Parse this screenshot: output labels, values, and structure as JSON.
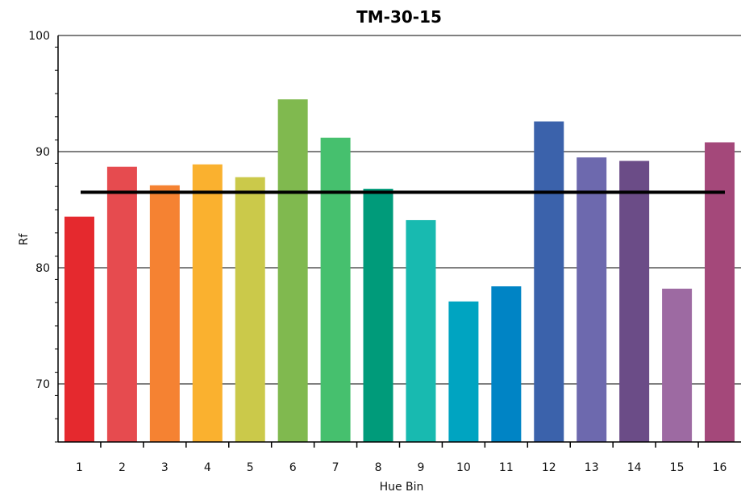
{
  "chart_data": {
    "type": "bar",
    "title": "TM-30-15",
    "xlabel": "Hue Bin",
    "ylabel": "Rf",
    "ylim": [
      65,
      100
    ],
    "yticks": [
      "70",
      "80",
      "90",
      "100"
    ],
    "categories": [
      "1",
      "2",
      "3",
      "4",
      "5",
      "6",
      "7",
      "8",
      "9",
      "10",
      "11",
      "12",
      "13",
      "14",
      "15",
      "16"
    ],
    "values": [
      84.4,
      88.7,
      87.1,
      88.9,
      87.8,
      94.5,
      91.2,
      86.8,
      84.1,
      77.1,
      78.4,
      92.6,
      89.5,
      89.2,
      78.2,
      90.8
    ],
    "colors": [
      "#e5292e",
      "#e64b4f",
      "#f58232",
      "#fab12f",
      "#cbc94a",
      "#80b94f",
      "#46c06e",
      "#009b7a",
      "#18bab0",
      "#00a4c1",
      "#0084c5",
      "#3b62ab",
      "#6d69ae",
      "#6b4c87",
      "#9d6aa2",
      "#a4487a"
    ],
    "reference_value": 86.5,
    "grid": true
  }
}
